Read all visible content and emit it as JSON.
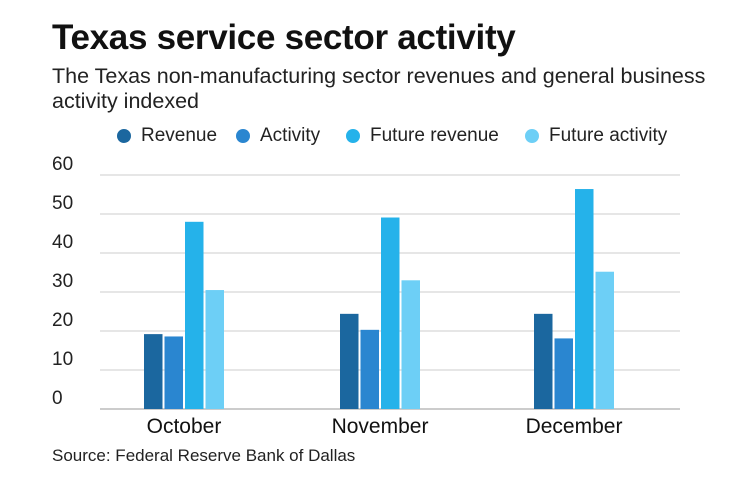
{
  "chart_data": {
    "type": "bar",
    "title": "Texas service sector activity",
    "subtitle": "The Texas non-manufacturing sector revenues and general business activity indexed",
    "categories": [
      "October",
      "November",
      "December"
    ],
    "series": [
      {
        "name": "Revenue",
        "color": "#1b679f",
        "values": [
          19.2,
          24.4,
          24.4
        ]
      },
      {
        "name": "Activity",
        "color": "#2a86d0",
        "values": [
          18.6,
          20.3,
          18.1
        ]
      },
      {
        "name": "Future revenue",
        "color": "#25b2ea",
        "values": [
          48.0,
          49.1,
          56.4
        ]
      },
      {
        "name": "Future activity",
        "color": "#6dcff6",
        "values": [
          30.5,
          33.0,
          35.2
        ]
      }
    ],
    "yticks": [
      0,
      10,
      20,
      30,
      40,
      50,
      60
    ],
    "ylim": [
      0,
      60
    ],
    "xlabel": "",
    "ylabel": "",
    "grid": true,
    "legend_position": "top"
  },
  "source": "Source: Federal Reserve Bank of Dallas"
}
